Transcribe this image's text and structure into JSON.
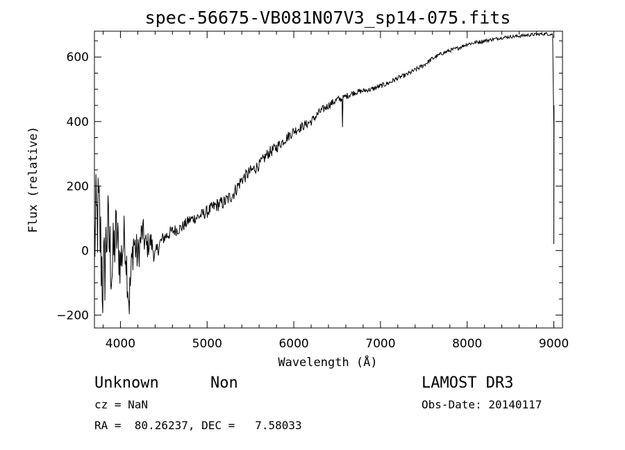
{
  "chart_data": {
    "type": "line",
    "title": "spec-56675-VB081N07V3_sp14-075.fits",
    "xlabel": "Wavelength (Å)",
    "ylabel": "Flux (relative)",
    "xlim": [
      3700,
      9100
    ],
    "ylim": [
      -240,
      680
    ],
    "xticks": [
      4000,
      5000,
      6000,
      7000,
      8000,
      9000
    ],
    "yticks": [
      -200,
      0,
      200,
      400,
      600
    ],
    "xtick_labels": [
      "4000",
      "5000",
      "6000",
      "7000",
      "8000",
      "9000"
    ],
    "ytick_labels": [
      "−200",
      "0",
      "200",
      "400",
      "600"
    ],
    "series": [
      {
        "name": "flux",
        "x": [
          3700,
          3750,
          3800,
          3850,
          3900,
          3950,
          4000,
          4050,
          4100,
          4150,
          4200,
          4250,
          4300,
          4350,
          4400,
          4450,
          4500,
          4600,
          4700,
          4800,
          4900,
          5000,
          5100,
          5200,
          5300,
          5400,
          5500,
          5600,
          5700,
          5800,
          5900,
          6000,
          6100,
          6200,
          6300,
          6400,
          6500,
          6550,
          6600,
          6700,
          6800,
          6900,
          7000,
          7100,
          7200,
          7300,
          7400,
          7500,
          7600,
          7700,
          7800,
          7900,
          8000,
          8100,
          8200,
          8300,
          8400,
          8500,
          8600,
          8700,
          8800,
          8900,
          8990
        ],
        "y": [
          40,
          120,
          -120,
          80,
          -60,
          60,
          -40,
          50,
          -160,
          30,
          -20,
          60,
          10,
          30,
          -20,
          20,
          40,
          60,
          70,
          95,
          105,
          120,
          140,
          150,
          175,
          220,
          245,
          265,
          300,
          320,
          345,
          370,
          385,
          400,
          430,
          450,
          468,
          470,
          478,
          490,
          495,
          500,
          510,
          520,
          535,
          545,
          560,
          575,
          595,
          610,
          620,
          628,
          640,
          645,
          650,
          655,
          660,
          663,
          665,
          668,
          670,
          672,
          670
        ],
        "noise": [
          180,
          150,
          160,
          130,
          120,
          100,
          90,
          80,
          80,
          70,
          60,
          55,
          45,
          35,
          30,
          25,
          22,
          20,
          18,
          18,
          18,
          20,
          22,
          22,
          22,
          20,
          20,
          18,
          18,
          18,
          16,
          16,
          14,
          14,
          14,
          12,
          12,
          10,
          10,
          9,
          8,
          8,
          8,
          8,
          7,
          7,
          7,
          7,
          7,
          6,
          6,
          6,
          6,
          6,
          6,
          5,
          5,
          5,
          5,
          5,
          5,
          5,
          5
        ]
      }
    ]
  },
  "footer": {
    "object_class": "Unknown",
    "subclass": "Non",
    "survey": "LAMOST DR3",
    "cz": "cz = NaN",
    "obs_date": "Obs-Date: 20140117",
    "coords": "RA =  80.26237, DEC =   7.58033"
  }
}
